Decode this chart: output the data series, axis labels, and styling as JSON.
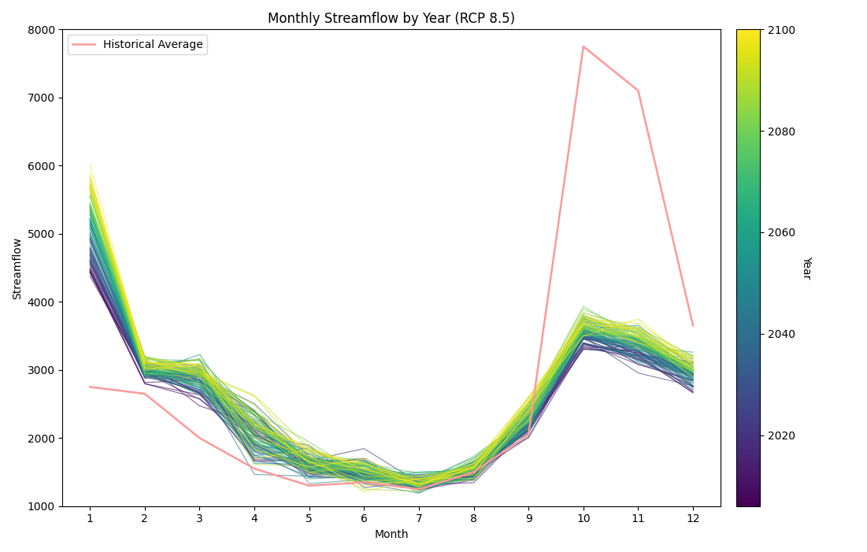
{
  "title": "Monthly Streamflow by Year (RCP 8.5)",
  "xlabel": "Month",
  "ylabel": "Streamflow",
  "xlim": [
    0.5,
    12.5
  ],
  "ylim": [
    1000,
    8000
  ],
  "xticks": [
    1,
    2,
    3,
    4,
    5,
    6,
    7,
    8,
    9,
    10,
    11,
    12
  ],
  "yticks": [
    1000,
    2000,
    3000,
    4000,
    5000,
    6000,
    7000,
    8000
  ],
  "year_start": 2006,
  "year_end": 2100,
  "colormap": "viridis",
  "line_alpha": 0.6,
  "line_width": 0.9,
  "hist_color": "#ff9999",
  "hist_linewidth": 1.8,
  "hist_label": "Historical Average",
  "historical_avg": [
    2750,
    2650,
    2000,
    1550,
    1300,
    1350,
    1250,
    1500,
    2050,
    7750,
    7100,
    3650
  ],
  "seed": 42,
  "figsize": [
    11.01,
    7.01
  ],
  "dpi": 100,
  "cbar_labelpad": 15
}
